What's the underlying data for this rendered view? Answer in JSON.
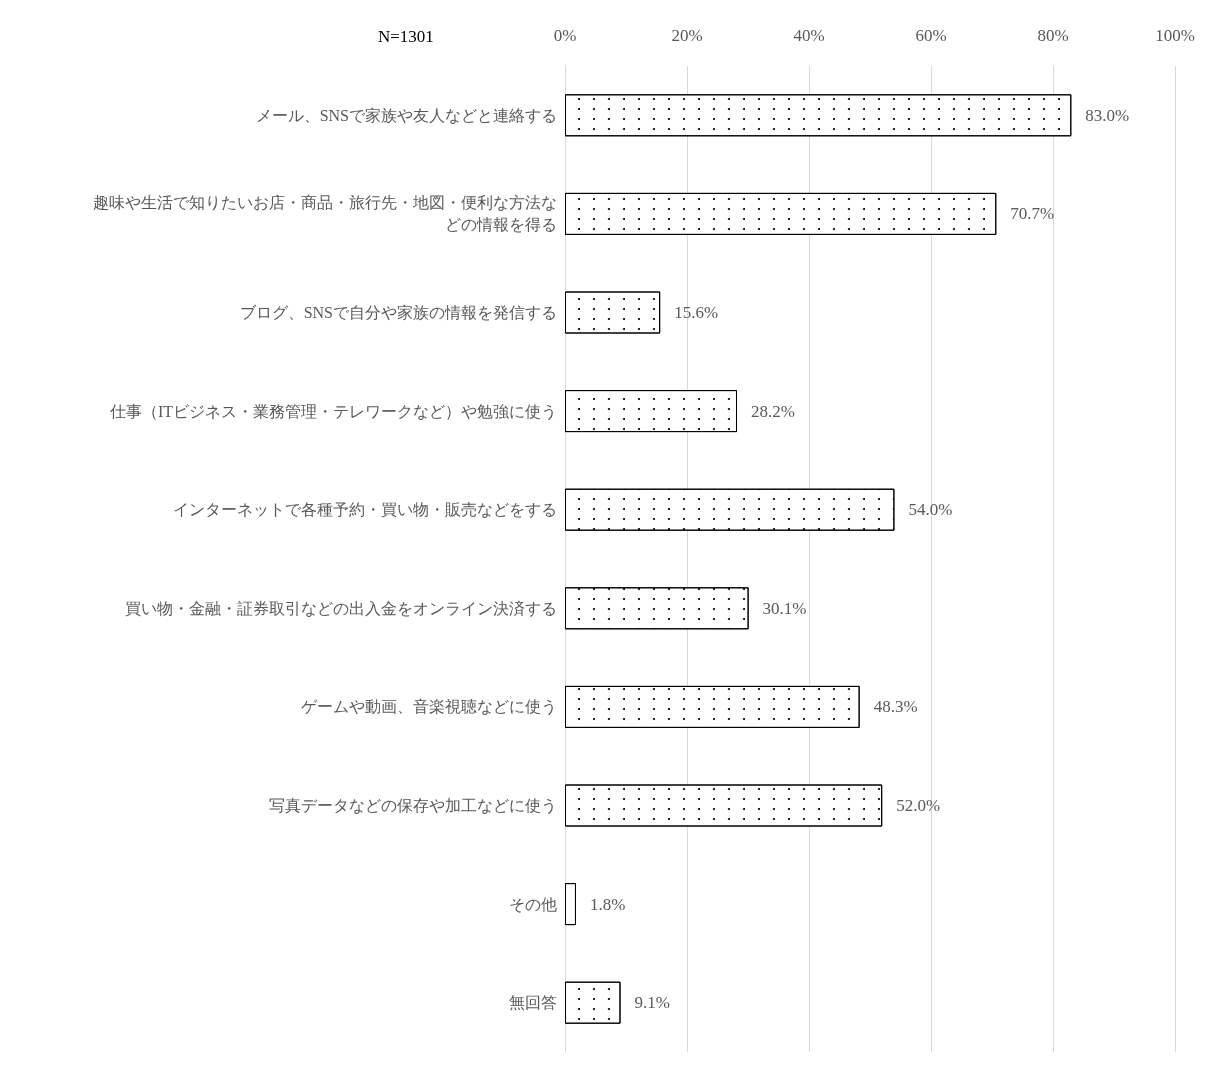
{
  "chart_data": {
    "type": "bar",
    "orientation": "horizontal",
    "annotations": [
      "N=1301"
    ],
    "categories": [
      "メール、SNSで家族や友人などと連絡する",
      "趣味や生活で知りたいお店・商品・旅行先・地図・便利な方法などの情報を得る",
      "ブログ、SNSで自分や家族の情報を発信する",
      "仕事（ITビジネス・業務管理・テレワークなど）や勉強に使う",
      "インターネットで各種予約・買い物・販売などをする",
      "買い物・金融・証券取引などの出入金をオンライン決済する",
      "ゲームや動画、音楽視聴などに使う",
      "写真データなどの保存や加工などに使う",
      "その他",
      "無回答"
    ],
    "values": [
      83.0,
      70.7,
      15.6,
      28.2,
      54.0,
      30.1,
      48.3,
      52.0,
      1.8,
      9.1
    ],
    "value_labels": [
      "83.0%",
      "70.7%",
      "15.6%",
      "28.2%",
      "54.0%",
      "30.1%",
      "48.3%",
      "52.0%",
      "1.8%",
      "9.1%"
    ],
    "color": "#ffffff",
    "xlim": [
      0,
      100
    ],
    "xticks": [
      {
        "value": 0,
        "label": "0%"
      },
      {
        "value": 20,
        "label": "20%"
      },
      {
        "value": 40,
        "label": "40%"
      },
      {
        "value": 60,
        "label": "60%"
      },
      {
        "value": 80,
        "label": "80%"
      },
      {
        "value": 100,
        "label": "100%"
      }
    ],
    "grid": "x"
  }
}
